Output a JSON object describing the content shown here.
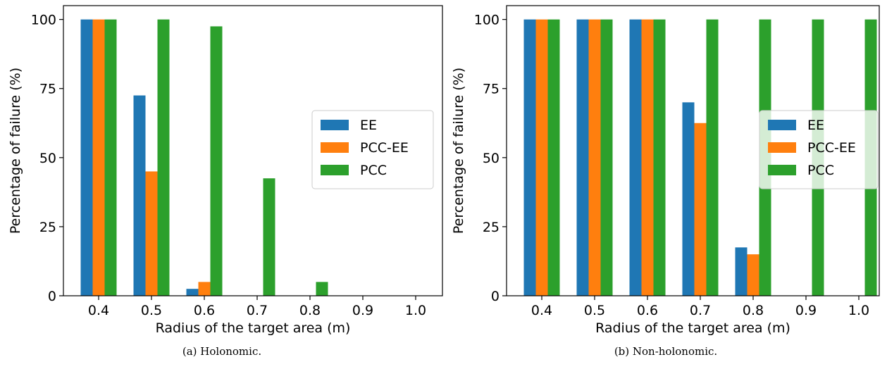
{
  "figure": {
    "captions": [
      "(a) Holonomic.",
      "(b) Non-holonomic."
    ]
  },
  "chart_data": [
    {
      "type": "bar",
      "categories": [
        "0.4",
        "0.5",
        "0.6",
        "0.7",
        "0.8",
        "0.9",
        "1.0"
      ],
      "series": [
        {
          "name": "EE",
          "color": "#1f77b4",
          "values": [
            100,
            72.5,
            2.5,
            0,
            0,
            0,
            0
          ]
        },
        {
          "name": "PCC-EE",
          "color": "#ff7f0e",
          "values": [
            100,
            45,
            5,
            0,
            0,
            0,
            0
          ]
        },
        {
          "name": "PCC",
          "color": "#2ca02c",
          "values": [
            100,
            100,
            97.5,
            42.5,
            5,
            0,
            0
          ]
        }
      ],
      "xlabel": "Radius of the target area (m)",
      "ylabel": "Percentage of failure (%)",
      "yticks": [
        "0",
        "25",
        "50",
        "75",
        "100"
      ],
      "ylim": [
        0,
        105
      ],
      "grid": false,
      "legend": "center-right"
    },
    {
      "type": "bar",
      "categories": [
        "0.4",
        "0.5",
        "0.6",
        "0.7",
        "0.8",
        "0.9",
        "1.0"
      ],
      "series": [
        {
          "name": "EE",
          "color": "#1f77b4",
          "values": [
            100,
            100,
            100,
            70,
            17.5,
            0,
            0
          ]
        },
        {
          "name": "PCC-EE",
          "color": "#ff7f0e",
          "values": [
            100,
            100,
            100,
            62.5,
            15,
            0,
            0
          ]
        },
        {
          "name": "PCC",
          "color": "#2ca02c",
          "values": [
            100,
            100,
            100,
            100,
            100,
            100,
            100
          ]
        }
      ],
      "xlabel": "Radius of the target area (m)",
      "ylabel": "Percentage of failure (%)",
      "yticks": [
        "0",
        "25",
        "50",
        "75",
        "100"
      ],
      "ylim": [
        0,
        105
      ],
      "grid": false,
      "legend": "center-right"
    }
  ]
}
